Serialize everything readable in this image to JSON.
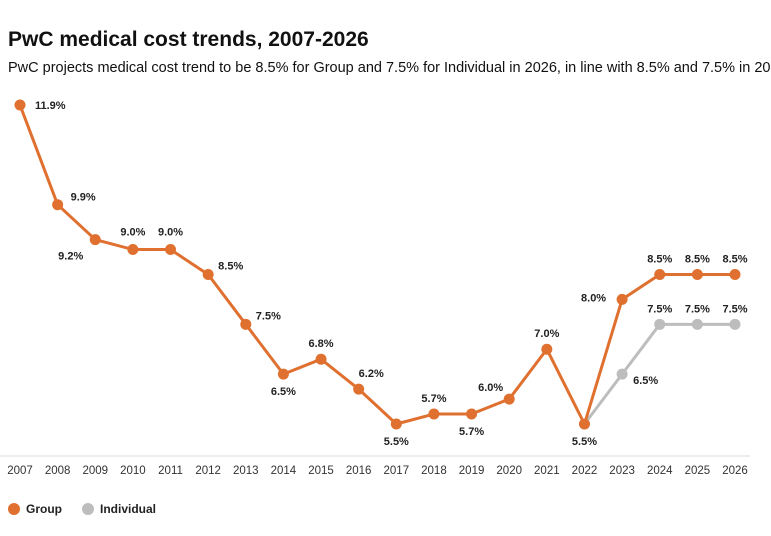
{
  "chart_data": {
    "type": "line",
    "title": "PwC medical cost trends, 2007-2026",
    "subtitle": "PwC projects medical cost trend to be 8.5% for Group and 7.5% for Individual in 2026, in line with 8.5% and 7.5% in 20",
    "categories": [
      "2007",
      "2008",
      "2009",
      "2010",
      "2011",
      "2012",
      "2013",
      "2014",
      "2015",
      "2016",
      "2017",
      "2018",
      "2019",
      "2020",
      "2021",
      "2022",
      "2023",
      "2024",
      "2025",
      "2026"
    ],
    "series": [
      {
        "name": "Group",
        "color": "#E0702F",
        "values": [
          11.9,
          9.9,
          9.2,
          9.0,
          9.0,
          8.5,
          7.5,
          6.5,
          6.8,
          6.2,
          5.5,
          5.7,
          5.7,
          6.0,
          7.0,
          5.5,
          8.0,
          8.5,
          8.5,
          8.5
        ],
        "labels": [
          "11.9%",
          "9.9%",
          "9.2%",
          "9.0%",
          "9.0%",
          "8.5%",
          "7.5%",
          "6.5%",
          "6.8%",
          "6.2%",
          "5.5%",
          "5.7%",
          "5.7%",
          "6.0%",
          "7.0%",
          "5.5%",
          "8.0%",
          "8.5%",
          "8.5%",
          "8.5%"
        ]
      },
      {
        "name": "Individual",
        "color": "#BDBDBD",
        "values": [
          null,
          null,
          null,
          null,
          null,
          null,
          null,
          null,
          null,
          null,
          null,
          null,
          null,
          null,
          null,
          5.5,
          6.5,
          7.5,
          7.5,
          7.5
        ],
        "labels": [
          null,
          null,
          null,
          null,
          null,
          null,
          null,
          null,
          null,
          null,
          null,
          null,
          null,
          null,
          null,
          "",
          "6.5%",
          "7.5%",
          "7.5%",
          "7.5%"
        ]
      }
    ],
    "ylim": [
      5.5,
      11.9
    ],
    "grid": false,
    "legend": "bottom-left"
  }
}
